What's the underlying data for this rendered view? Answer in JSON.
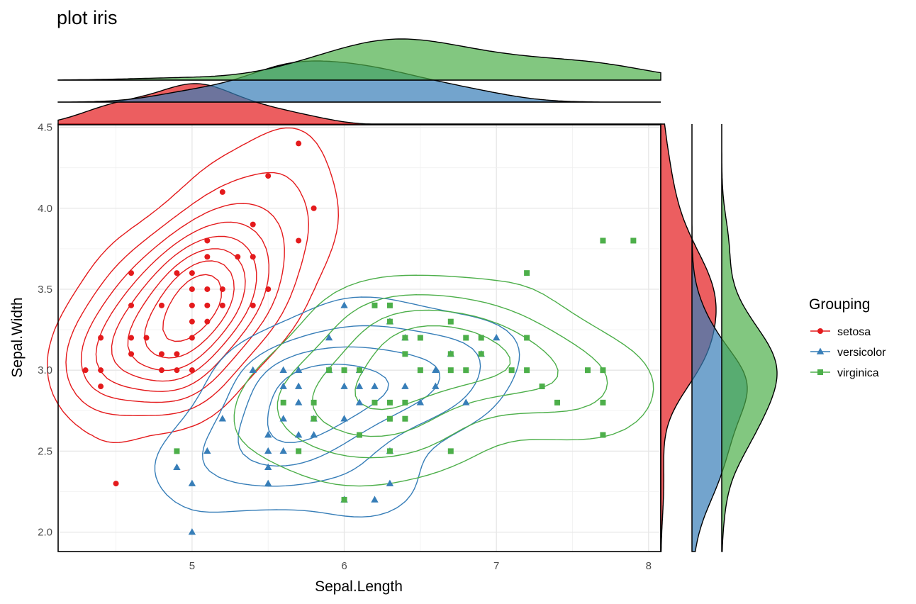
{
  "title": "plot iris",
  "colors": {
    "setosa": "#E41A1C",
    "versicolor": "#377EB8",
    "virginica": "#4DAF4A"
  },
  "chart_data": {
    "type": "scatter",
    "title": "plot iris",
    "xlabel": "Sepal.Length",
    "ylabel": "Sepal.Width",
    "xlim": [
      4.12,
      8.08
    ],
    "ylim": [
      1.88,
      4.52
    ],
    "x_ticks": [
      "5",
      "6",
      "7",
      "8"
    ],
    "x_tick_values": [
      5,
      6,
      7,
      8
    ],
    "y_ticks": [
      "2.0",
      "2.5",
      "3.0",
      "3.5",
      "4.0",
      "4.5"
    ],
    "y_tick_values": [
      2.0,
      2.5,
      3.0,
      3.5,
      4.0,
      4.5
    ],
    "grid": true,
    "legend": {
      "title": "Grouping",
      "position": "right",
      "entries": [
        "setosa",
        "versicolor",
        "virginica"
      ]
    },
    "marginals": "density",
    "contours": "2d-density",
    "series": [
      {
        "name": "setosa",
        "color": "#E41A1C",
        "marker": "circle",
        "points": [
          [
            4.3,
            3.0
          ],
          [
            4.4,
            2.9
          ],
          [
            4.4,
            3.0
          ],
          [
            4.4,
            3.2
          ],
          [
            4.5,
            2.3
          ],
          [
            4.6,
            3.1
          ],
          [
            4.6,
            3.2
          ],
          [
            4.6,
            3.4
          ],
          [
            4.6,
            3.6
          ],
          [
            4.7,
            3.2
          ],
          [
            4.8,
            3.0
          ],
          [
            4.8,
            3.1
          ],
          [
            4.8,
            3.4
          ],
          [
            4.9,
            3.0
          ],
          [
            4.9,
            3.1
          ],
          [
            4.9,
            3.6
          ],
          [
            5.0,
            3.0
          ],
          [
            5.0,
            3.2
          ],
          [
            5.0,
            3.3
          ],
          [
            5.0,
            3.4
          ],
          [
            5.0,
            3.5
          ],
          [
            5.0,
            3.6
          ],
          [
            5.1,
            3.3
          ],
          [
            5.1,
            3.4
          ],
          [
            5.1,
            3.5
          ],
          [
            5.1,
            3.7
          ],
          [
            5.1,
            3.8
          ],
          [
            5.2,
            3.4
          ],
          [
            5.2,
            3.5
          ],
          [
            5.2,
            4.1
          ],
          [
            5.3,
            3.7
          ],
          [
            5.4,
            3.4
          ],
          [
            5.4,
            3.7
          ],
          [
            5.4,
            3.9
          ],
          [
            5.5,
            3.5
          ],
          [
            5.5,
            4.2
          ],
          [
            5.7,
            3.8
          ],
          [
            5.7,
            4.4
          ],
          [
            5.8,
            4.0
          ]
        ]
      },
      {
        "name": "versicolor",
        "color": "#377EB8",
        "marker": "triangle",
        "points": [
          [
            4.9,
            2.4
          ],
          [
            5.0,
            2.0
          ],
          [
            5.0,
            2.3
          ],
          [
            5.1,
            2.5
          ],
          [
            5.2,
            2.7
          ],
          [
            5.4,
            3.0
          ],
          [
            5.5,
            2.3
          ],
          [
            5.5,
            2.4
          ],
          [
            5.5,
            2.5
          ],
          [
            5.5,
            2.6
          ],
          [
            5.6,
            2.5
          ],
          [
            5.6,
            2.7
          ],
          [
            5.6,
            2.9
          ],
          [
            5.6,
            3.0
          ],
          [
            5.7,
            2.6
          ],
          [
            5.7,
            2.8
          ],
          [
            5.7,
            2.9
          ],
          [
            5.7,
            3.0
          ],
          [
            5.8,
            2.6
          ],
          [
            5.8,
            2.7
          ],
          [
            5.9,
            3.0
          ],
          [
            5.9,
            3.2
          ],
          [
            6.0,
            2.2
          ],
          [
            6.0,
            2.7
          ],
          [
            6.0,
            2.9
          ],
          [
            6.0,
            3.4
          ],
          [
            6.1,
            2.8
          ],
          [
            6.1,
            2.9
          ],
          [
            6.1,
            3.0
          ],
          [
            6.2,
            2.2
          ],
          [
            6.2,
            2.9
          ],
          [
            6.3,
            2.3
          ],
          [
            6.3,
            2.5
          ],
          [
            6.3,
            3.3
          ],
          [
            6.4,
            2.9
          ],
          [
            6.4,
            3.2
          ],
          [
            6.5,
            2.8
          ],
          [
            6.6,
            2.9
          ],
          [
            6.6,
            3.0
          ],
          [
            6.7,
            3.1
          ],
          [
            6.8,
            2.8
          ],
          [
            6.9,
            3.1
          ],
          [
            7.0,
            3.2
          ]
        ]
      },
      {
        "name": "virginica",
        "color": "#4DAF4A",
        "marker": "square",
        "points": [
          [
            4.9,
            2.5
          ],
          [
            5.6,
            2.8
          ],
          [
            5.7,
            2.5
          ],
          [
            5.8,
            2.7
          ],
          [
            5.8,
            2.8
          ],
          [
            5.9,
            3.0
          ],
          [
            6.0,
            2.2
          ],
          [
            6.0,
            3.0
          ],
          [
            6.1,
            2.6
          ],
          [
            6.1,
            3.0
          ],
          [
            6.2,
            2.8
          ],
          [
            6.2,
            3.4
          ],
          [
            6.3,
            2.5
          ],
          [
            6.3,
            2.7
          ],
          [
            6.3,
            2.8
          ],
          [
            6.3,
            3.3
          ],
          [
            6.3,
            3.4
          ],
          [
            6.4,
            2.7
          ],
          [
            6.4,
            2.8
          ],
          [
            6.4,
            3.1
          ],
          [
            6.4,
            3.2
          ],
          [
            6.5,
            3.0
          ],
          [
            6.5,
            3.2
          ],
          [
            6.7,
            2.5
          ],
          [
            6.7,
            3.0
          ],
          [
            6.7,
            3.1
          ],
          [
            6.7,
            3.3
          ],
          [
            6.8,
            3.0
          ],
          [
            6.8,
            3.2
          ],
          [
            6.9,
            3.1
          ],
          [
            6.9,
            3.2
          ],
          [
            7.1,
            3.0
          ],
          [
            7.2,
            3.0
          ],
          [
            7.2,
            3.2
          ],
          [
            7.2,
            3.6
          ],
          [
            7.3,
            2.9
          ],
          [
            7.4,
            2.8
          ],
          [
            7.6,
            3.0
          ],
          [
            7.7,
            2.6
          ],
          [
            7.7,
            2.8
          ],
          [
            7.7,
            3.0
          ],
          [
            7.7,
            3.8
          ],
          [
            7.9,
            3.8
          ]
        ]
      }
    ]
  }
}
